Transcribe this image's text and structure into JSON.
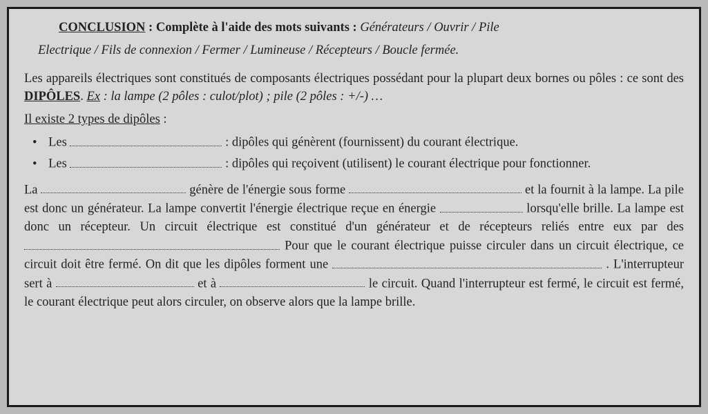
{
  "header": {
    "conclusion_label": "CONCLUSION",
    "instruction": " : Complète à l'aide des mots suivants : ",
    "words_line1": "Générateurs  /  Ouvrir  /  Pile",
    "words_line2": "Electrique  /  Fils de connexion  /  Fermer  /  Lumineuse  /  Récepteurs  /  Boucle fermée."
  },
  "p1a": "Les appareils électriques sont constitués de composants électriques possédant pour la plupart deux bornes ou pôles : ce sont des ",
  "p1_dipoles": "DIPÔLES",
  "p1_ex_label": "Ex",
  "p1b": " : la lampe (2 pôles : culot/plot) ; pile (2 pôles : +/-) …",
  "subheading": "Il existe 2 types de dipôles",
  "li1a": "Les ",
  "li1b": " : dipôles qui génèrent (fournissent) du courant électrique.",
  "li2a": "Les ",
  "li2b": " : dipôles qui reçoivent (utilisent) le courant électrique pour fonctionner.",
  "b1": "La ",
  "b2": " génère de l'énergie sous forme ",
  "b3": " et la fournit à la lampe. La pile est donc un générateur. La lampe convertit l'énergie électrique reçue en énergie ",
  "b4": " lorsqu'elle brille. La lampe est donc un récepteur.  Un circuit électrique est constitué d'un générateur et de récepteurs reliés entre eux par des ",
  "b5": " Pour que le courant électrique puisse circuler dans un circuit électrique, ce circuit doit être fermé. On dit que les dipôles forment une ",
  "b6": " . L'interrupteur sert à ",
  "b7": " et à ",
  "b8": " le circuit. Quand l'interrupteur est fermé, le circuit est fermé, le courant électrique peut alors circuler, on observe alors que la lampe brille.",
  "blanks": {
    "w_li1": 220,
    "w_li2": 220,
    "w_b1": 210,
    "w_b2": 250,
    "w_b3": 120,
    "w_b4": 370,
    "w_b5": 390,
    "w_b6": 200,
    "w_b7": 210
  },
  "colors": {
    "page_bg": "#b8bbb9",
    "sheet_bg": "#d6d8d6",
    "border": "#1a1a1a",
    "text": "#222222"
  },
  "fonts": {
    "family": "Comic Sans MS",
    "body_size_pt": 14,
    "header_size_pt": 14
  }
}
